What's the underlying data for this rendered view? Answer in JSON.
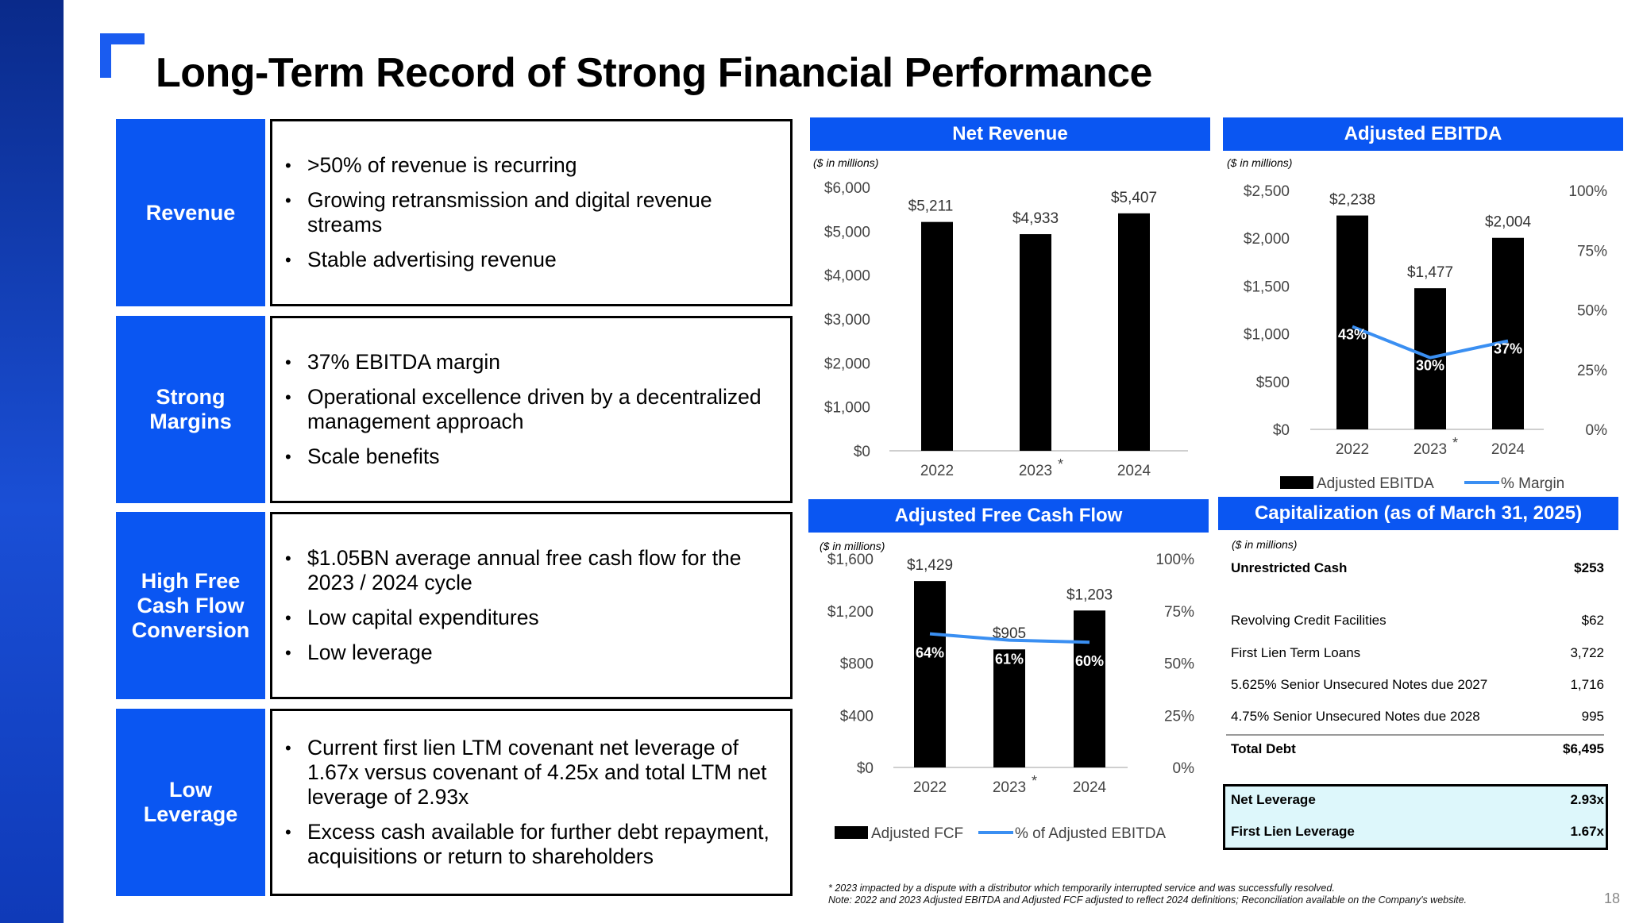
{
  "title": "Long-Term Record of Strong Financial Performance",
  "sections": [
    {
      "label": "Revenue",
      "bullets": [
        ">50% of revenue is recurring",
        "Growing retransmission and digital revenue streams",
        "Stable advertising revenue"
      ]
    },
    {
      "label": "Strong Margins",
      "bullets": [
        "37% EBITDA margin",
        "Operational excellence driven by a decentralized management approach",
        "Scale benefits"
      ]
    },
    {
      "label": "High Free Cash Flow Conversion",
      "bullets": [
        "$1.05BN average annual free cash flow for the 2023 / 2024 cycle",
        "Low capital expenditures",
        "Low leverage"
      ]
    },
    {
      "label": "Low Leverage",
      "bullets": [
        "Current first lien LTM covenant net leverage of 1.67x versus covenant of 4.25x and total LTM net leverage of 2.93x",
        "Excess cash available for further debt repayment, acquisitions or return to shareholders"
      ]
    }
  ],
  "units": "($ in millions)",
  "asterisk": "*",
  "chart_data": [
    {
      "id": "net-revenue",
      "type": "bar",
      "title": "Net Revenue",
      "categories": [
        "2022",
        "2023",
        "2024"
      ],
      "values": [
        5211,
        4933,
        5407
      ],
      "value_labels": [
        "$5,211",
        "$4,933",
        "$5,407"
      ],
      "ylim": [
        0,
        6000
      ],
      "y_ticks": [
        "$0",
        "$1,000",
        "$2,000",
        "$3,000",
        "$4,000",
        "$5,000",
        "$6,000"
      ],
      "color": "#000000"
    },
    {
      "id": "adj-ebitda",
      "type": "bar",
      "title": "Adjusted EBITDA",
      "categories": [
        "2022",
        "2023",
        "2024"
      ],
      "series": [
        {
          "name": "Adjusted EBITDA",
          "values": [
            2238,
            1477,
            2004
          ],
          "labels": [
            "$2,238",
            "$1,477",
            "$2,004"
          ]
        },
        {
          "name": "% Margin",
          "values": [
            43,
            30,
            37
          ],
          "labels": [
            "43%",
            "30%",
            "37%"
          ],
          "axis": "right"
        }
      ],
      "ylim": [
        0,
        2500
      ],
      "y2lim": [
        0,
        100
      ],
      "y_ticks": [
        "$0",
        "$500",
        "$1,000",
        "$1,500",
        "$2,000",
        "$2,500"
      ],
      "y2_ticks": [
        "0%",
        "25%",
        "50%",
        "75%",
        "100%"
      ],
      "legend": [
        "Adjusted EBITDA",
        "% Margin"
      ],
      "bar_color": "#000000",
      "line_color": "#3a8ff2"
    },
    {
      "id": "adj-fcf",
      "type": "bar",
      "title": "Adjusted Free Cash Flow",
      "categories": [
        "2022",
        "2023",
        "2024"
      ],
      "series": [
        {
          "name": "Adjusted FCF",
          "values": [
            1429,
            905,
            1203
          ],
          "labels": [
            "$1,429",
            "$905",
            "$1,203"
          ]
        },
        {
          "name": "% of Adjusted EBITDA",
          "values": [
            64,
            61,
            60
          ],
          "labels": [
            "64%",
            "61%",
            "60%"
          ],
          "axis": "right"
        }
      ],
      "ylim": [
        0,
        1600
      ],
      "y2lim": [
        0,
        100
      ],
      "y_ticks": [
        "$0",
        "$400",
        "$800",
        "$1,200",
        "$1,600"
      ],
      "y2_ticks": [
        "0%",
        "25%",
        "50%",
        "75%",
        "100%"
      ],
      "legend": [
        "Adjusted FCF",
        "% of Adjusted EBITDA"
      ],
      "bar_color": "#000000",
      "line_color": "#3a8ff2"
    }
  ],
  "capitalization": {
    "title": "Capitalization (as of March 31, 2025)",
    "cash": {
      "label": "Unrestricted Cash",
      "value": "$253"
    },
    "debt_items": [
      {
        "label": "Revolving Credit Facilities",
        "value": "$62"
      },
      {
        "label": "First Lien Term Loans",
        "value": "3,722"
      },
      {
        "label": "5.625% Senior Unsecured Notes due 2027",
        "value": "1,716"
      },
      {
        "label": "4.75% Senior Unsecured Notes due 2028",
        "value": "995"
      }
    ],
    "total_debt": {
      "label": "Total Debt",
      "value": "$6,495"
    },
    "net_leverage": {
      "label": "Net Leverage",
      "value": "2.93x"
    },
    "first_lien_leverage": {
      "label": "First Lien Leverage",
      "value": "1.67x"
    }
  },
  "footnote_1": "* 2023 impacted by a dispute with a distributor which temporarily interrupted service and was successfully resolved.",
  "footnote_2": "Note:  2022 and 2023 Adjusted EBITDA and Adjusted FCF adjusted to reflect 2024 definitions;  Reconciliation available on the Company's website.",
  "page_number": "18"
}
